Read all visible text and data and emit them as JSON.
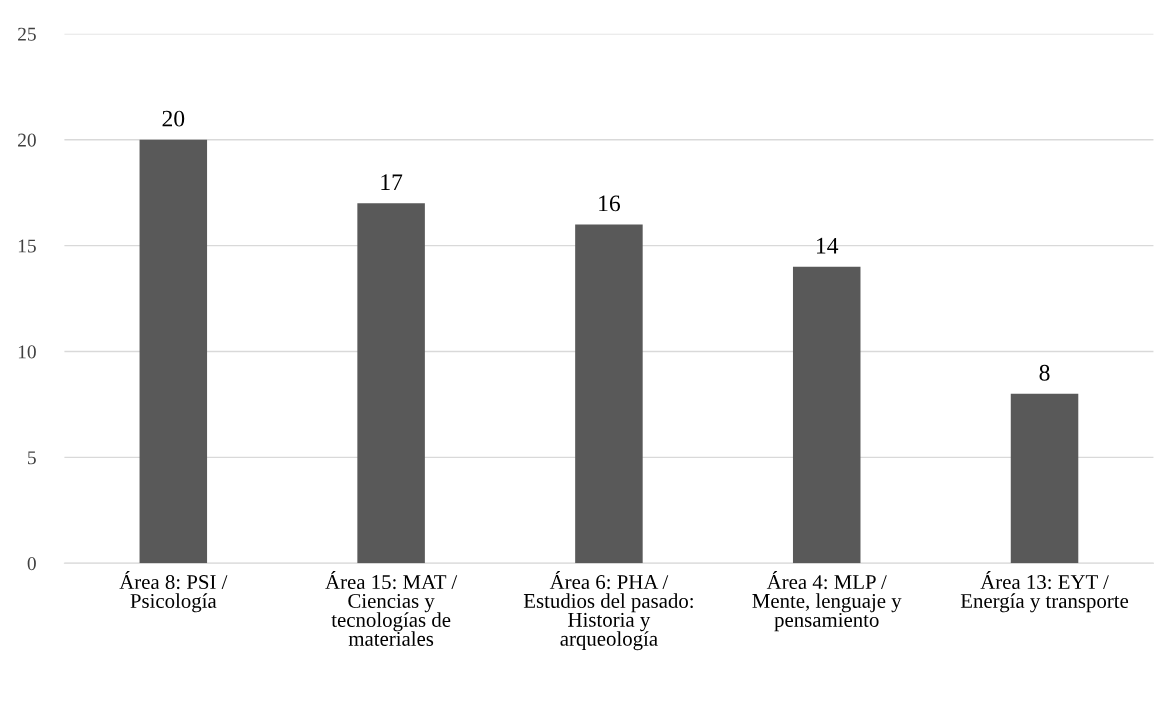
{
  "chart_data": {
    "type": "bar",
    "categories": [
      "Área 8: PSI /\nPsicología",
      "Área 15: MAT /\nCiencias y\ntecnologías de\nmateriales",
      "Área 6: PHA /\nEstudios del pasado:\nHistoria y\narqueología",
      "Área 4: MLP /\nMente, lenguaje y\npensamiento",
      "Área 13: EYT /\nEnergía y transporte"
    ],
    "values": [
      20,
      17,
      16,
      14,
      8
    ],
    "color": "#595959",
    "ylim": [
      0,
      25
    ],
    "yticks": [
      0,
      5,
      10,
      15,
      20,
      25
    ],
    "grid": "y",
    "data_labels": true
  }
}
